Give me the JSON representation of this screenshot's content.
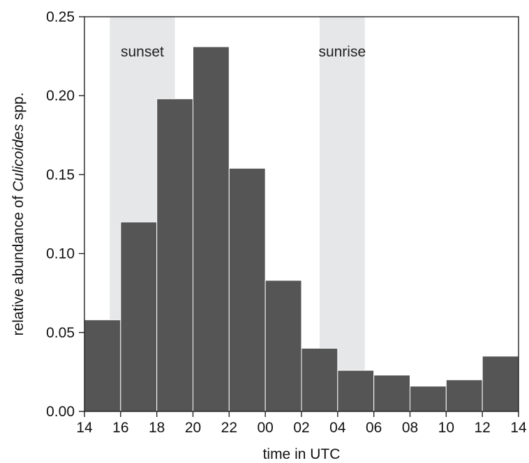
{
  "chart_data": {
    "type": "bar",
    "xlabel": "time in UTC",
    "ylabel_parts": [
      "relative abundance of ",
      "Culicoides",
      " spp."
    ],
    "x_ticks": [
      "14",
      "16",
      "18",
      "20",
      "22",
      "00",
      "02",
      "04",
      "06",
      "08",
      "10",
      "12",
      "14"
    ],
    "y_ticks": [
      "0.00",
      "0.05",
      "0.10",
      "0.15",
      "0.20",
      "0.25"
    ],
    "ylim": [
      0,
      0.25
    ],
    "x_range_hours": [
      14,
      38
    ],
    "bin_width_hours": 2,
    "bins": [
      {
        "start": 14,
        "value": 0.058
      },
      {
        "start": 16,
        "value": 0.12
      },
      {
        "start": 18,
        "value": 0.198
      },
      {
        "start": 20,
        "value": 0.231
      },
      {
        "start": 22,
        "value": 0.154
      },
      {
        "start": 24,
        "value": 0.083
      },
      {
        "start": 26,
        "value": 0.04
      },
      {
        "start": 28,
        "value": 0.026
      },
      {
        "start": 30,
        "value": 0.023
      },
      {
        "start": 32,
        "value": 0.016
      },
      {
        "start": 34,
        "value": 0.02
      },
      {
        "start": 36,
        "value": 0.035
      }
    ],
    "bands": [
      {
        "label": "sunset",
        "start": 15.4,
        "end": 19.0
      },
      {
        "label": "sunrise",
        "start": 27.0,
        "end": 29.5
      }
    ],
    "colors": {
      "bar": "#555555",
      "band": "#e6e7e9",
      "bar_edge": "#ffffff"
    }
  }
}
